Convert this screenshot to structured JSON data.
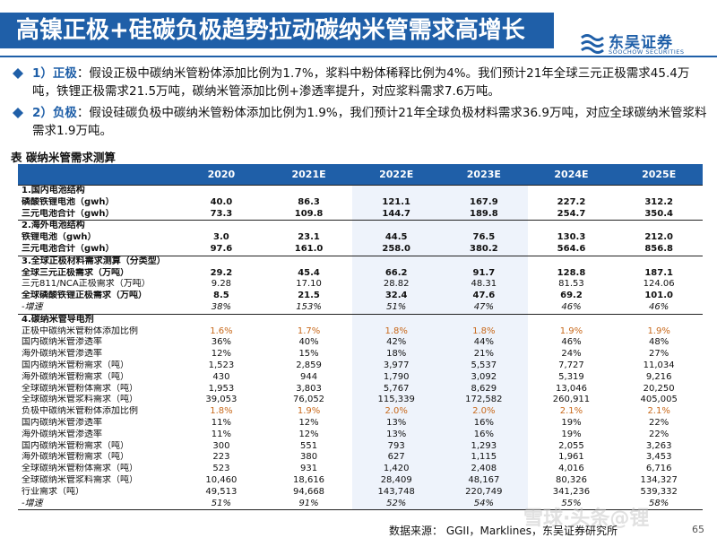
{
  "header": {
    "title": "高镍正极+硅碳负极趋势拉动碳纳米管需求高增长",
    "brand_name": "东吴证券",
    "brand_en": "SOOCHOW SECURITIES",
    "brand_color": "#1f5fa8"
  },
  "bullets": [
    {
      "lead": "1）正极",
      "text": "：假设正极中碳纳米管粉体添加比例为1.7%，浆料中粉体稀释比例为4%。我们预计21年全球三元正极需求45.4万吨，铁锂正极需求21.5万吨，碳纳米管添加比例+渗透率提升，对应浆料需求7.6万吨。"
    },
    {
      "lead": "2）负极",
      "text": "：假设硅碳负极中碳纳米管粉体添加比例为1.9%，我们预计21年全球负极材料需求36.9万吨，对应全球碳纳米管浆料需求1.9万吨。"
    }
  ],
  "table": {
    "caption": "表 碳纳米管需求测算",
    "columns": [
      "",
      "2020",
      "2021E",
      "2022E",
      "2023E",
      "2024E",
      "2025E"
    ],
    "rows": [
      {
        "style": "section",
        "cells": [
          "1.国内电池结构",
          "",
          "",
          "",
          "",
          "",
          ""
        ]
      },
      {
        "style": "bold",
        "cells": [
          "磷酸铁锂电池（gwh）",
          "40.0",
          "86.3",
          "121.1",
          "167.9",
          "227.2",
          "312.2"
        ]
      },
      {
        "style": "bold",
        "cells": [
          "三元电池合计（gwh）",
          "73.3",
          "109.8",
          "144.7",
          "189.8",
          "254.7",
          "350.4"
        ]
      },
      {
        "style": "section",
        "cells": [
          "2.海外电池结构",
          "",
          "",
          "",
          "",
          "",
          ""
        ]
      },
      {
        "style": "bold",
        "cells": [
          "铁锂电池（gwh）",
          "3.0",
          "23.1",
          "44.5",
          "76.5",
          "130.3",
          "212.0"
        ]
      },
      {
        "style": "bold",
        "cells": [
          "三元电池合计（gwh）",
          "97.6",
          "161.0",
          "258.0",
          "380.2",
          "564.6",
          "856.8"
        ]
      },
      {
        "style": "section",
        "cells": [
          "3.全球正极材料需求测算（分类型）",
          "",
          "",
          "",
          "",
          "",
          ""
        ]
      },
      {
        "style": "bold",
        "cells": [
          "全球三元正极需求（万吨）",
          "29.2",
          "45.4",
          "66.2",
          "91.7",
          "128.8",
          "187.1"
        ]
      },
      {
        "style": "",
        "cells": [
          "三元811/NCA正极需求（万吨）",
          "9.28",
          "17.10",
          "28.82",
          "48.31",
          "81.53",
          "124.06"
        ]
      },
      {
        "style": "bold",
        "cells": [
          "全球磷酸铁锂正极需求（万吨）",
          "8.5",
          "21.5",
          "32.4",
          "47.6",
          "69.2",
          "101.0"
        ]
      },
      {
        "style": "italic",
        "cells": [
          "-增速",
          "38%",
          "153%",
          "51%",
          "47%",
          "46%",
          "46%"
        ]
      },
      {
        "style": "section",
        "cells": [
          "4.碳纳米管导电剂",
          "",
          "",
          "",
          "",
          "",
          ""
        ]
      },
      {
        "style": "orange",
        "cells": [
          "正极中碳纳米管粉体添加比例",
          "1.6%",
          "1.7%",
          "1.8%",
          "1.8%",
          "1.9%",
          "1.9%"
        ]
      },
      {
        "style": "",
        "cells": [
          "国内碳纳米管渗透率",
          "36%",
          "40%",
          "42%",
          "44%",
          "46%",
          "48%"
        ]
      },
      {
        "style": "",
        "cells": [
          "海外碳纳米管渗透率",
          "12%",
          "15%",
          "18%",
          "21%",
          "24%",
          "27%"
        ]
      },
      {
        "style": "",
        "cells": [
          "国内碳纳米管粉需求（吨）",
          "1,523",
          "2,859",
          "3,977",
          "5,537",
          "7,727",
          "11,034"
        ]
      },
      {
        "style": "",
        "cells": [
          "海外碳纳米管粉需求（吨）",
          "430",
          "944",
          "1,790",
          "3,092",
          "5,319",
          "9,216"
        ]
      },
      {
        "style": "",
        "cells": [
          "全球碳纳米管粉体需求（吨）",
          "1,953",
          "3,803",
          "5,767",
          "8,629",
          "13,046",
          "20,250"
        ]
      },
      {
        "style": "",
        "cells": [
          "全球碳纳米管浆料需求（吨）",
          "39,053",
          "76,052",
          "115,339",
          "172,582",
          "260,911",
          "405,005"
        ]
      },
      {
        "style": "orange",
        "cells": [
          "负极中碳纳米管粉体添加比例",
          "1.8%",
          "1.9%",
          "2.0%",
          "2.0%",
          "2.1%",
          "2.1%"
        ]
      },
      {
        "style": "",
        "cells": [
          "国内碳纳米管渗透率",
          "11%",
          "12%",
          "13%",
          "16%",
          "19%",
          "22%"
        ]
      },
      {
        "style": "",
        "cells": [
          "海外碳纳米管渗透率",
          "11%",
          "12%",
          "13%",
          "16%",
          "19%",
          "22%"
        ]
      },
      {
        "style": "",
        "cells": [
          "国内碳纳米管粉需求（吨）",
          "300",
          "551",
          "793",
          "1,293",
          "2,055",
          "3,263"
        ]
      },
      {
        "style": "",
        "cells": [
          "海外碳纳米管粉需求（吨）",
          "223",
          "380",
          "627",
          "1,115",
          "1,961",
          "3,453"
        ]
      },
      {
        "style": "",
        "cells": [
          "全球碳纳米管粉体需求（吨）",
          "523",
          "931",
          "1,420",
          "2,408",
          "4,016",
          "6,716"
        ]
      },
      {
        "style": "",
        "cells": [
          "全球碳纳米管浆料需求（吨）",
          "10,460",
          "18,616",
          "28,409",
          "48,167",
          "80,326",
          "134,327"
        ]
      },
      {
        "style": "",
        "cells": [
          "行业需求（吨）",
          "49,513",
          "94,668",
          "143,748",
          "220,749",
          "341,236",
          "539,332"
        ]
      },
      {
        "style": "italic bb",
        "cells": [
          "-增速",
          "51%",
          "91%",
          "52%",
          "54%",
          "55%",
          "58%"
        ]
      }
    ]
  },
  "footer": {
    "source": "数据来源：  GGII，Marklines，东吴证券研究所",
    "page": "65",
    "watermark": "雪球·头条@锂"
  }
}
